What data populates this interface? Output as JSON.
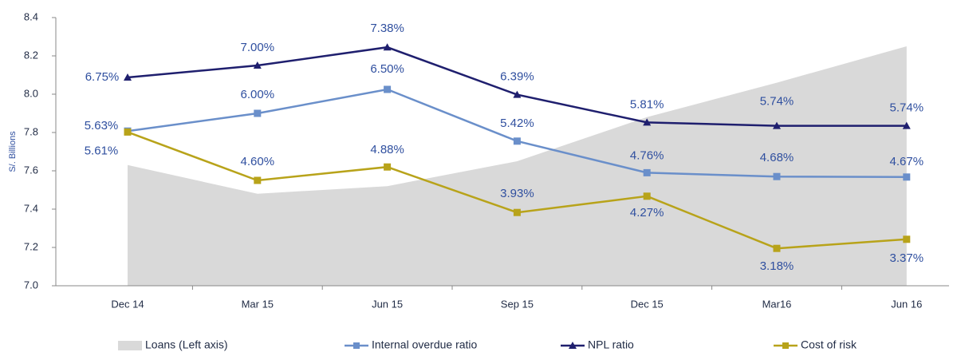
{
  "chart_data": {
    "type": "line",
    "y_label": "S/. Billions",
    "categories": [
      "Dec 14",
      "Mar 15",
      "Jun 15",
      "Sep 15",
      "Dec 15",
      "Mar16",
      "Jun 16"
    ],
    "ylim": [
      7.0,
      8.4
    ],
    "yticks": [
      {
        "value": 7,
        "label": "7.0"
      },
      7.2,
      7.4,
      7.6,
      7.8,
      {
        "value": 8,
        "label": "8.0"
      },
      8.2,
      8.4
    ],
    "y2lim": [
      2.4,
      8.0
    ],
    "grid": false,
    "legend": "bottom",
    "series": [
      {
        "name": "Loans (Left axis)",
        "type": "area",
        "color": "#d9d9d9",
        "values": [
          7.63,
          7.48,
          7.52,
          7.65,
          7.88,
          8.06,
          8.25
        ]
      },
      {
        "name": "Internal overdue ratio",
        "color": "#6a8fca",
        "marker": "square",
        "axis": "y2",
        "values": [
          5.63,
          6.0,
          6.5,
          5.42,
          4.76,
          4.68,
          4.67
        ],
        "value_labels": [
          "5.63%",
          "6.00%",
          "6.50%",
          "5.42%",
          "4.76%",
          "4.68%",
          "4.67%"
        ]
      },
      {
        "name": "NPL ratio",
        "color": "#1f1f6e",
        "marker": "triangle",
        "axis": "y2",
        "values": [
          6.75,
          7.0,
          7.38,
          6.39,
          5.81,
          5.74,
          5.74
        ],
        "value_labels": [
          "6.75%",
          "7.00%",
          "7.38%",
          "6.39%",
          "5.81%",
          "5.74%",
          "5.74%"
        ]
      },
      {
        "name": "Cost of risk",
        "color": "#b8a31a",
        "marker": "square",
        "axis": "y2",
        "values": [
          5.61,
          4.6,
          4.88,
          3.93,
          4.27,
          3.18,
          3.37
        ],
        "value_labels": [
          "5.61%",
          "4.60%",
          "4.88%",
          "3.93%",
          "4.27%",
          "3.18%",
          "3.37%"
        ]
      }
    ]
  }
}
